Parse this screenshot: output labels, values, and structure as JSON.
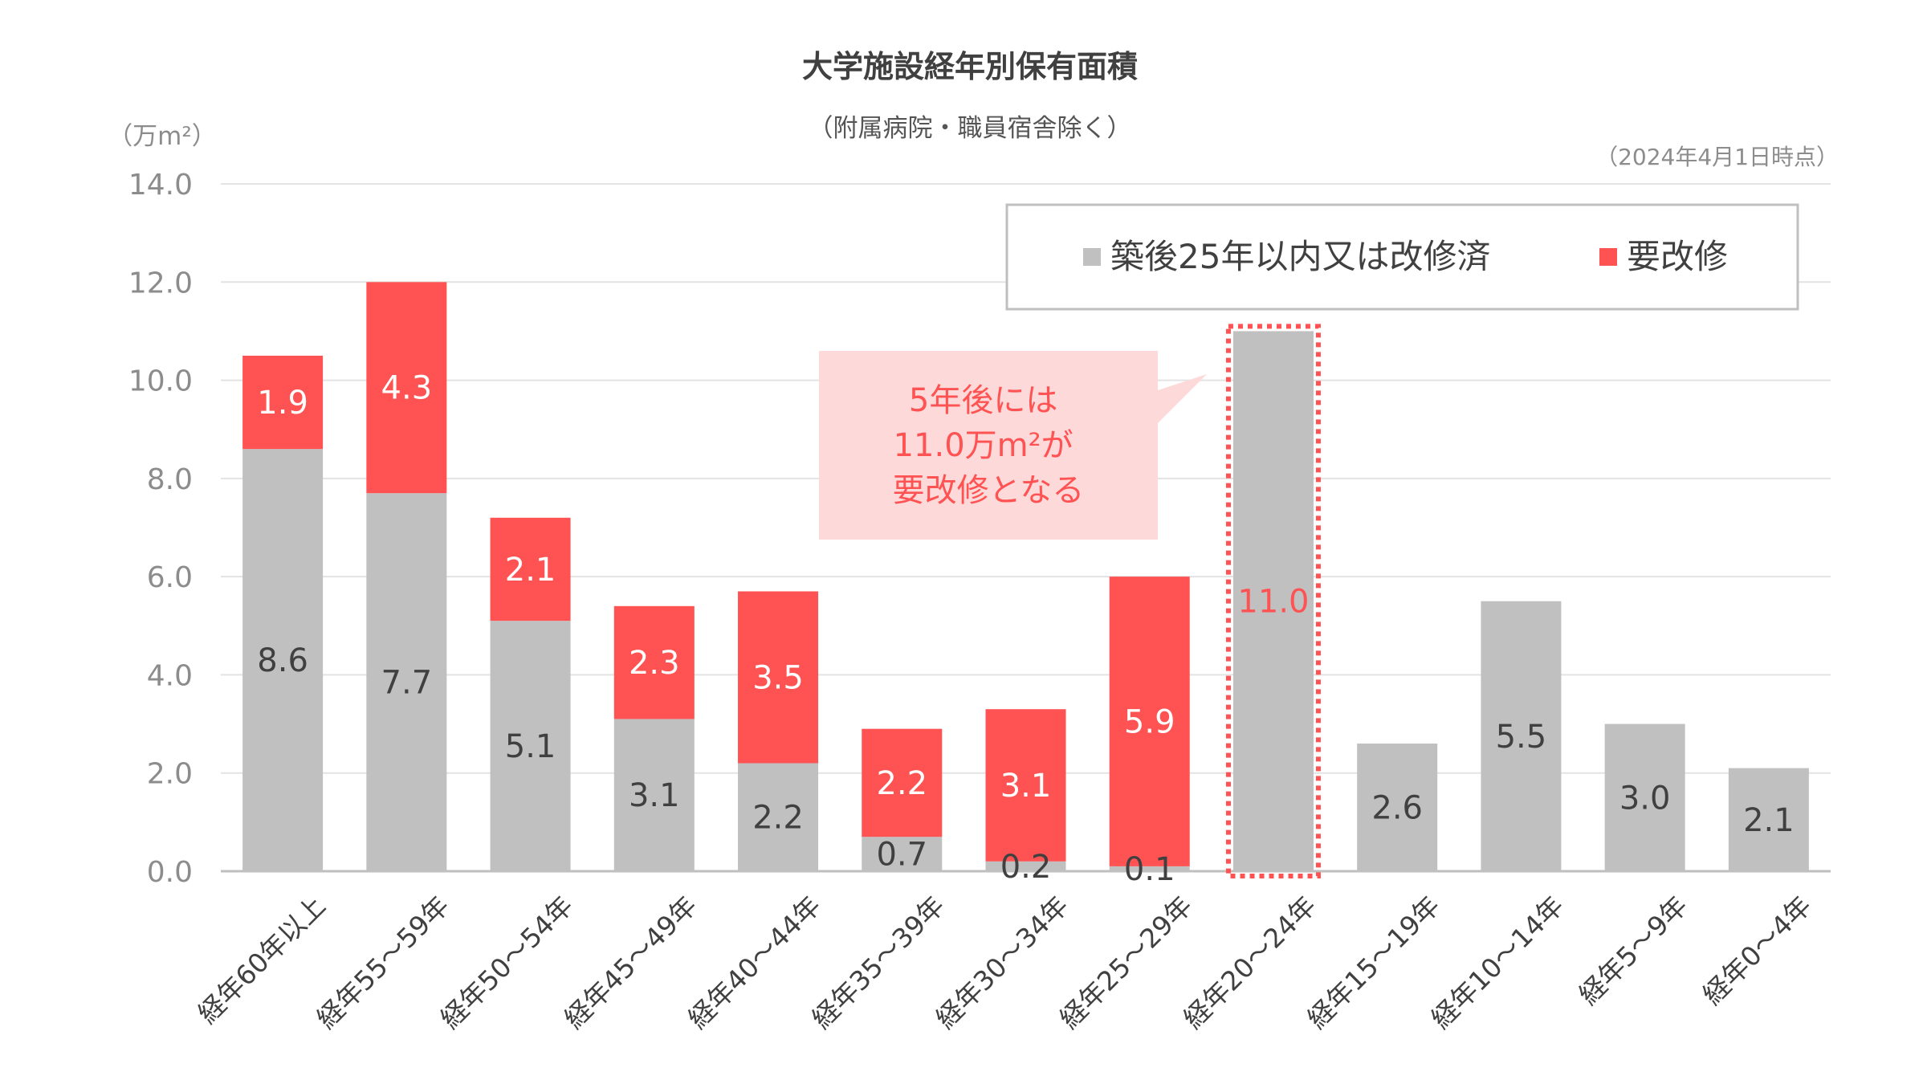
{
  "chart_data": {
    "type": "bar",
    "stacked": true,
    "title": "大学施設経年別保有面積",
    "subtitle": "（附属病院・職員宿舎除く）",
    "as_of": "（2024年4月1日時点）",
    "ylabel": "（万m²）",
    "ylim": [
      0,
      14
    ],
    "yticks": [
      "0.0",
      "2.0",
      "4.0",
      "6.0",
      "8.0",
      "10.0",
      "12.0",
      "14.0"
    ],
    "grid": true,
    "legend_position": "top-right",
    "categories": [
      "経年60年以上",
      "経年55～59年",
      "経年50～54年",
      "経年45～49年",
      "経年40～44年",
      "経年35～39年",
      "経年30～34年",
      "経年25～29年",
      "経年20～24年",
      "経年15～19年",
      "経年10～14年",
      "経年5～9年",
      "経年0～4年"
    ],
    "series": [
      {
        "name": "築後25年以内又は改修済",
        "color": "#c0c0c0",
        "values": [
          8.6,
          7.7,
          5.1,
          3.1,
          2.2,
          0.7,
          0.2,
          0.1,
          11.0,
          2.6,
          5.5,
          3.0,
          2.1
        ]
      },
      {
        "name": "要改修",
        "color": "#ff5252",
        "values": [
          1.9,
          4.3,
          2.1,
          2.3,
          3.5,
          2.2,
          3.1,
          5.9,
          0,
          0,
          0,
          0,
          0
        ]
      }
    ],
    "highlight": {
      "category": "経年20～24年",
      "label": "11.0",
      "color": "#ff5252"
    },
    "callout": {
      "lines": [
        "5年後には",
        "11.0万m²が",
        "要改修となる"
      ],
      "color": "#ff5252",
      "background": "#fdd9d9"
    }
  }
}
